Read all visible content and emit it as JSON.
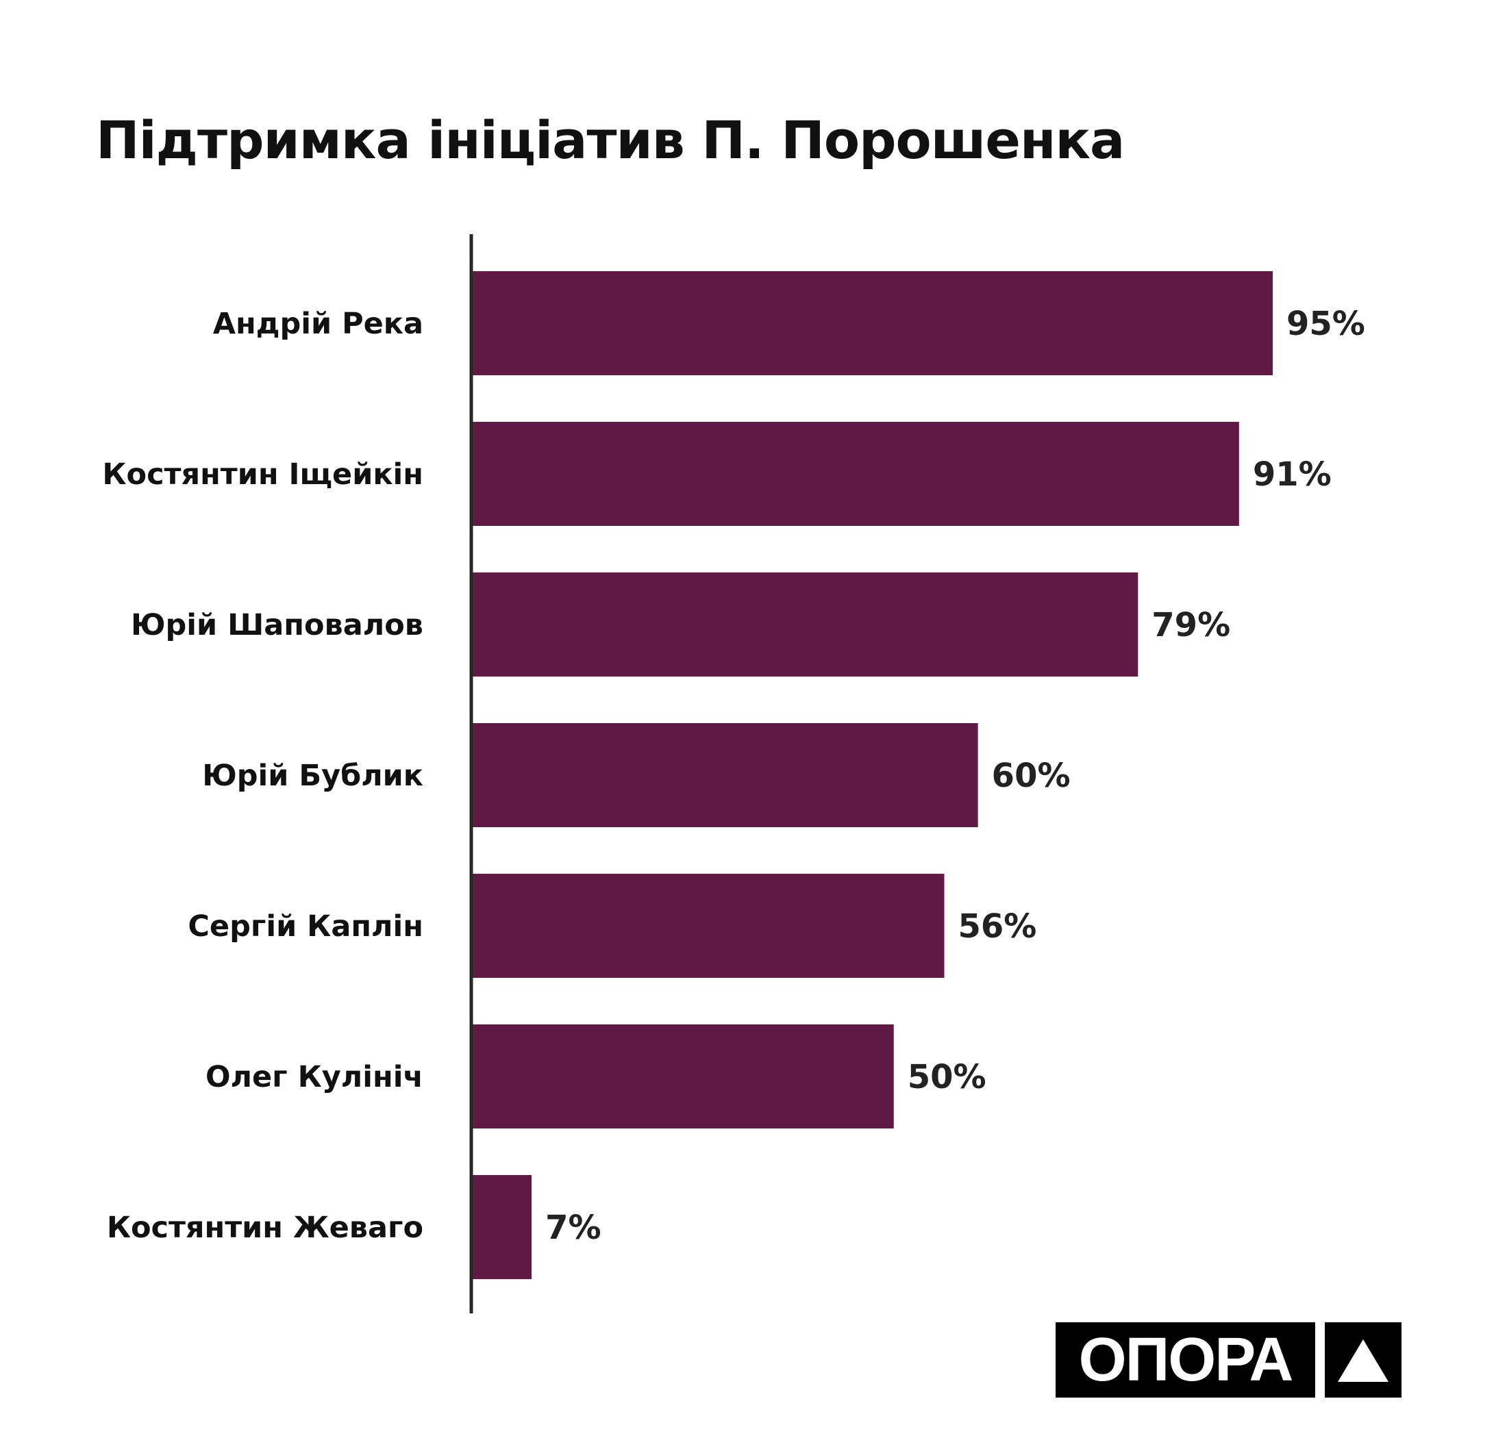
{
  "chart_data": {
    "type": "bar",
    "orientation": "horizontal",
    "title": "Підтримка ініціатив П. Порошенка",
    "categories": [
      "Андрій Река",
      "Костянтин Іщейкін",
      "Юрій Шаповалов",
      "Юрій Бублик",
      "Сергій Каплін",
      "Олег Кулініч",
      "Костянтин Жеваго"
    ],
    "values": [
      95,
      91,
      79,
      60,
      56,
      50,
      7
    ],
    "value_labels": [
      "95%",
      "91%",
      "79%",
      "60%",
      "56%",
      "50%",
      "7%"
    ],
    "xlabel": "",
    "ylabel": "",
    "xlim": [
      0,
      100
    ],
    "grid": false,
    "bar_color": "#5f1a45"
  },
  "logo": {
    "text": "ОПОРА"
  }
}
